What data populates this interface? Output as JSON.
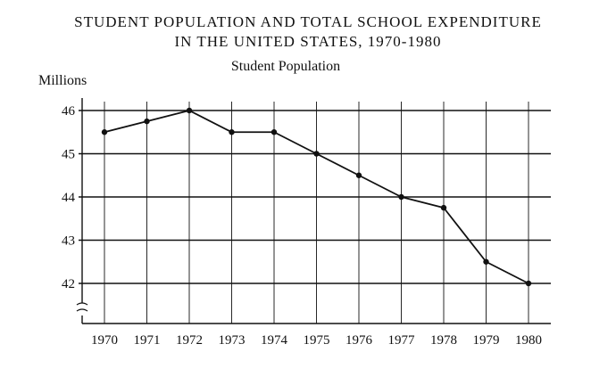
{
  "chart_data": {
    "type": "line",
    "title": "STUDENT POPULATION AND TOTAL SCHOOL EXPENDITURE",
    "title_line2": "IN THE UNITED STATES, 1970-1980",
    "subtitle": "Student Population",
    "ylabel": "Millions",
    "xlabel": "",
    "categories": [
      "1970",
      "1971",
      "1972",
      "1973",
      "1974",
      "1975",
      "1976",
      "1977",
      "1978",
      "1979",
      "1980"
    ],
    "y_ticks": [
      42,
      43,
      44,
      45,
      46
    ],
    "ylim": [
      42,
      46
    ],
    "axis_break": true,
    "grid": true,
    "series": [
      {
        "values": [
          45.5,
          45.75,
          46.0,
          45.5,
          45.5,
          45.0,
          44.5,
          44.0,
          43.75,
          42.5,
          42.0
        ]
      }
    ],
    "colors": {
      "line": "#111111",
      "grid": "#111111"
    }
  }
}
